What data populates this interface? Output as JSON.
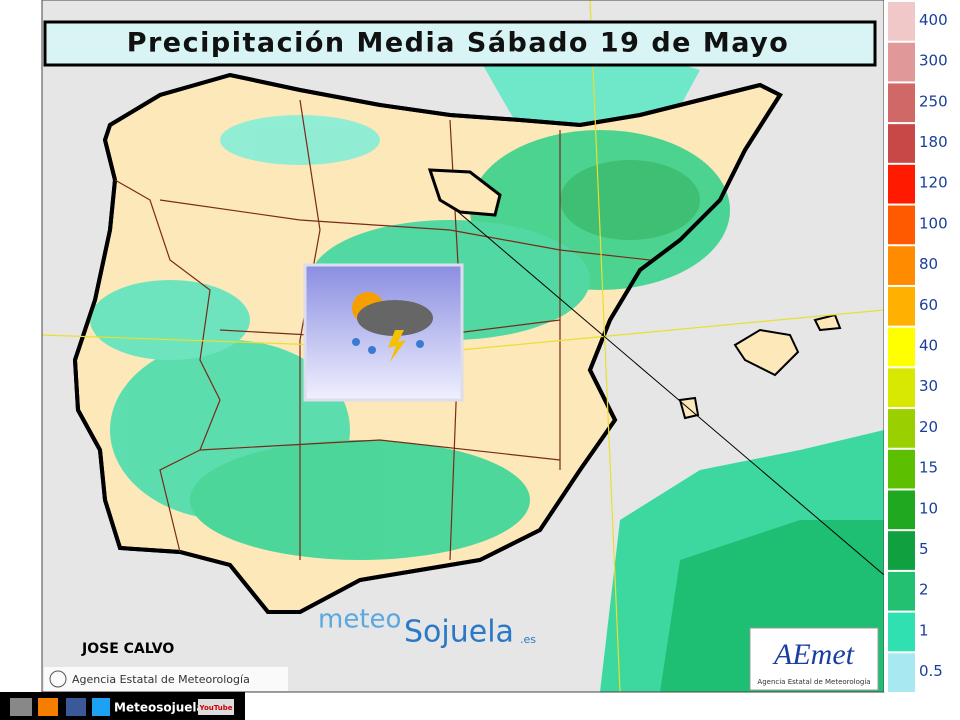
{
  "title": "Precipitación Media Sábado 19 de Mayo",
  "legend": {
    "labels": [
      "400",
      "300",
      "250",
      "180",
      "120",
      "100",
      "80",
      "60",
      "40",
      "30",
      "20",
      "15",
      "10",
      "5",
      "2",
      "1",
      "0.5"
    ]
  },
  "author": "JOSE CALVO",
  "aemet_credit": "Agencia Estatal de Meteorología",
  "watermark": {
    "meteo": "meteo",
    "sojuela": "Sojuela",
    "tld": ".es"
  },
  "logo": {
    "name": "AEmet",
    "subtitle": "Agencia Estatal de Meteorología"
  },
  "footer": {
    "site": "Meteosojuela",
    "youtube": "YouTube"
  }
}
